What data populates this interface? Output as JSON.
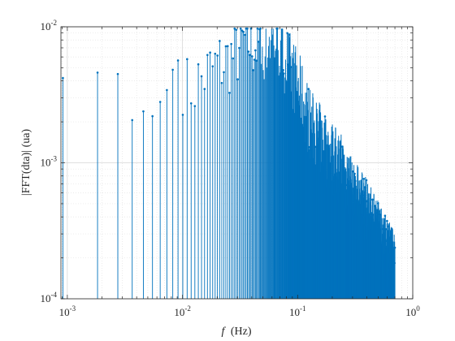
{
  "chart_data": {
    "type": "stem",
    "title": "",
    "xlabel_italic": "f",
    "xlabel_rest": "(Hz)",
    "ylabel": "|FFT(dta)| (ua)",
    "xscale": "log",
    "yscale": "log",
    "xlim": [
      0.00088,
      1
    ],
    "ylim": [
      0.0001,
      0.01
    ],
    "grid": true,
    "minor_grid": true,
    "series_color": "#0072BD",
    "xticks": [
      {
        "value": 0.001,
        "base": "10",
        "exp": "-3"
      },
      {
        "value": 0.01,
        "base": "10",
        "exp": "-2"
      },
      {
        "value": 0.1,
        "base": "10",
        "exp": "-1"
      },
      {
        "value": 1,
        "base": "10",
        "exp": "0"
      }
    ],
    "yticks": [
      {
        "value": 0.0001,
        "base": "10",
        "exp": "-4"
      },
      {
        "value": 0.001,
        "base": "10",
        "exp": "-3"
      },
      {
        "value": 0.01,
        "base": "10",
        "exp": "-2"
      }
    ],
    "fundamental_hz": 0.000915,
    "f_max_hz": 0.7,
    "envelope": [
      [
        0.00092,
        0.0042
      ],
      [
        0.0018,
        0.0046
      ],
      [
        0.0027,
        0.0047
      ],
      [
        0.0037,
        0.002
      ],
      [
        0.0046,
        0.0024
      ],
      [
        0.0055,
        0.0022
      ],
      [
        0.0064,
        0.0028
      ],
      [
        0.0073,
        0.0034
      ],
      [
        0.0082,
        0.0048
      ],
      [
        0.0092,
        0.0057
      ],
      [
        0.011,
        0.0036
      ],
      [
        0.015,
        0.0045
      ],
      [
        0.02,
        0.0055
      ],
      [
        0.025,
        0.006
      ],
      [
        0.03,
        0.007
      ],
      [
        0.035,
        0.0085
      ],
      [
        0.04,
        0.008
      ],
      [
        0.05,
        0.0075
      ],
      [
        0.06,
        0.0092
      ],
      [
        0.07,
        0.0078
      ],
      [
        0.08,
        0.006
      ],
      [
        0.1,
        0.004
      ],
      [
        0.13,
        0.002
      ],
      [
        0.18,
        0.0013
      ],
      [
        0.25,
        0.0009
      ],
      [
        0.3,
        0.0006
      ],
      [
        0.4,
        0.00045
      ],
      [
        0.5,
        0.0003
      ],
      [
        0.6,
        0.00022
      ],
      [
        0.7,
        0.00018
      ]
    ]
  }
}
